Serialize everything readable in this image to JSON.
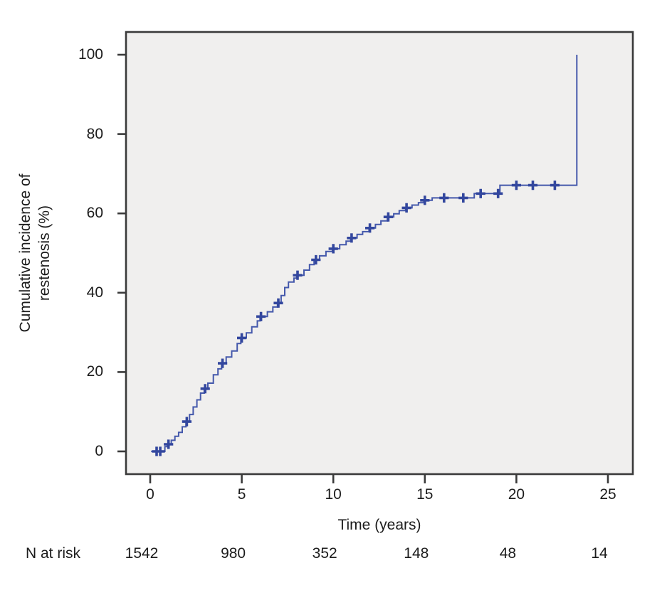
{
  "figure": {
    "y_axis_label": [
      "Cumulative incidence of",
      "restenosis (%)"
    ],
    "x_axis_label": "Time (years)",
    "colors": {
      "plot_bg": "#f0efee",
      "axis": "#3a3a3a",
      "text": "#1c1c1c",
      "curve": "#4458ab",
      "censor": "#33479e"
    }
  },
  "chart_data": {
    "type": "line",
    "subtype": "cumulative-incidence-step-curve",
    "title": "",
    "xlabel": "Time (years)",
    "ylabel": "Cumulative incidence of restenosis (%)",
    "xlim": [
      0,
      25
    ],
    "ylim": [
      0,
      100
    ],
    "x_ticks": [
      0,
      5,
      10,
      15,
      20,
      25
    ],
    "y_ticks": [
      0,
      20,
      40,
      60,
      80,
      100
    ],
    "grid": false,
    "legend": "none",
    "series": [
      {
        "name": "Cumulative incidence of restenosis (%)",
        "step": "after",
        "points": [
          [
            0.05,
            0
          ],
          [
            0.8,
            1.2
          ],
          [
            0.95,
            1.8
          ],
          [
            1.15,
            2.8
          ],
          [
            1.35,
            3.8
          ],
          [
            1.55,
            4.8
          ],
          [
            1.75,
            6.2
          ],
          [
            1.95,
            7.5
          ],
          [
            2.15,
            9.3
          ],
          [
            2.35,
            11.2
          ],
          [
            2.55,
            13.0
          ],
          [
            2.75,
            14.7
          ],
          [
            2.95,
            15.8
          ],
          [
            3.15,
            17.2
          ],
          [
            3.45,
            19.3
          ],
          [
            3.7,
            20.8
          ],
          [
            3.9,
            22.2
          ],
          [
            4.15,
            23.8
          ],
          [
            4.45,
            25.3
          ],
          [
            4.75,
            27.2
          ],
          [
            4.95,
            28.6
          ],
          [
            5.25,
            29.9
          ],
          [
            5.55,
            31.4
          ],
          [
            5.85,
            32.9
          ],
          [
            6.0,
            34.0
          ],
          [
            6.4,
            35.2
          ],
          [
            6.7,
            36.4
          ],
          [
            6.95,
            37.4
          ],
          [
            7.15,
            39.3
          ],
          [
            7.35,
            41.3
          ],
          [
            7.55,
            42.7
          ],
          [
            7.85,
            43.7
          ],
          [
            8.0,
            44.4
          ],
          [
            8.4,
            45.7
          ],
          [
            8.7,
            47.1
          ],
          [
            8.95,
            48.3
          ],
          [
            9.25,
            49.3
          ],
          [
            9.6,
            50.4
          ],
          [
            9.95,
            51.1
          ],
          [
            10.35,
            52.1
          ],
          [
            10.7,
            53.0
          ],
          [
            10.95,
            53.8
          ],
          [
            11.3,
            54.7
          ],
          [
            11.6,
            55.4
          ],
          [
            11.95,
            56.3
          ],
          [
            12.3,
            57.2
          ],
          [
            12.6,
            58.1
          ],
          [
            12.95,
            59.1
          ],
          [
            13.3,
            59.9
          ],
          [
            13.6,
            60.7
          ],
          [
            13.95,
            61.4
          ],
          [
            14.3,
            62.1
          ],
          [
            14.65,
            62.7
          ],
          [
            14.95,
            63.3
          ],
          [
            15.4,
            63.9
          ],
          [
            17.7,
            65.0
          ],
          [
            19.1,
            67.1
          ],
          [
            23.3,
            67.1
          ],
          [
            23.3,
            100
          ]
        ],
        "censor_times": [
          0.35,
          0.55,
          1.0,
          2.0,
          3.0,
          3.95,
          5.0,
          6.05,
          7.0,
          8.05,
          9.05,
          10.0,
          11.0,
          12.0,
          13.0,
          14.0,
          15.0,
          16.05,
          17.1,
          18.05,
          19.0,
          20.0,
          20.9,
          22.1
        ]
      }
    ],
    "n_at_risk": {
      "label": "N at risk",
      "times": [
        0,
        5,
        10,
        15,
        20,
        25
      ],
      "values": [
        1542,
        980,
        352,
        148,
        48,
        14
      ]
    }
  }
}
